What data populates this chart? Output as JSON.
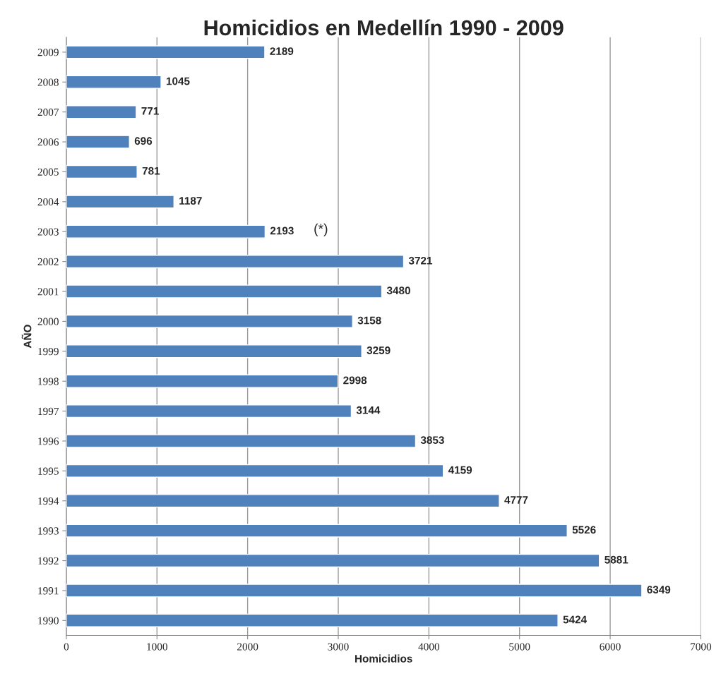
{
  "chart_data": {
    "type": "bar",
    "orientation": "horizontal",
    "title": "Homicidios en Medellín 1990 - 2009",
    "xlabel": "Homicidios",
    "ylabel": "AÑO",
    "categories": [
      "2009",
      "2008",
      "2007",
      "2006",
      "2005",
      "2004",
      "2003",
      "2002",
      "2001",
      "2000",
      "1999",
      "1998",
      "1997",
      "1996",
      "1995",
      "1994",
      "1993",
      "1992",
      "1991",
      "1990"
    ],
    "values": [
      2189,
      1045,
      771,
      696,
      781,
      1187,
      2193,
      3721,
      3480,
      3158,
      3259,
      2998,
      3144,
      3853,
      4159,
      4777,
      5526,
      5881,
      6349,
      5424
    ],
    "color": "#4f81bd",
    "data_labels": true,
    "xlim": [
      0,
      7000
    ],
    "xticks": [
      0,
      1000,
      2000,
      3000,
      4000,
      5000,
      6000,
      7000
    ],
    "grid": "x",
    "annotations": [
      "(*)"
    ]
  }
}
